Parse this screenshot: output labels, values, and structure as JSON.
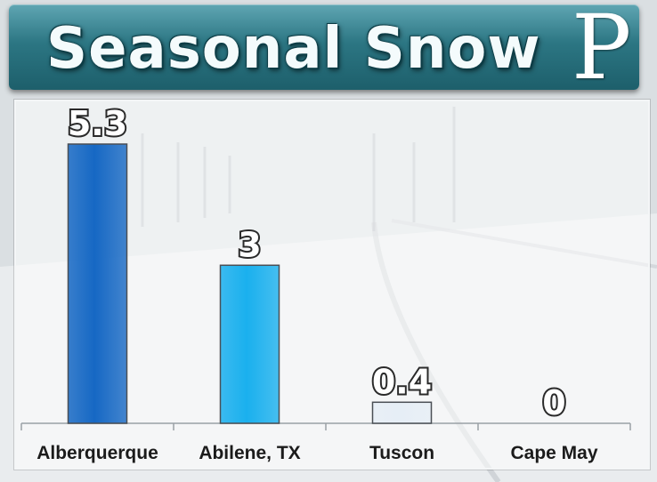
{
  "header": {
    "title": "Seasonal Snow",
    "logo_letter": "P"
  },
  "colors": {
    "title_bar": "#2c7683",
    "bar_dark_blue": "#1668c4",
    "bar_light_blue": "#1ab0ee",
    "bar_pale": "#e6eef6"
  },
  "chart_data": {
    "type": "bar",
    "title": "Seasonal Snow",
    "categories": [
      "Alberquerque",
      "Abilene, TX",
      "Tuscon",
      "Cape May"
    ],
    "values": [
      5.3,
      3,
      0.4,
      0
    ],
    "value_labels": [
      "5.3",
      "3",
      "0.4",
      "0"
    ],
    "bar_colors": [
      "#1668c4",
      "#1ab0ee",
      "#e6eef6",
      "#e6eef6"
    ],
    "xlabel": "",
    "ylabel": "",
    "ylim": [
      0,
      5.3
    ],
    "grid": false,
    "legend": "none"
  }
}
